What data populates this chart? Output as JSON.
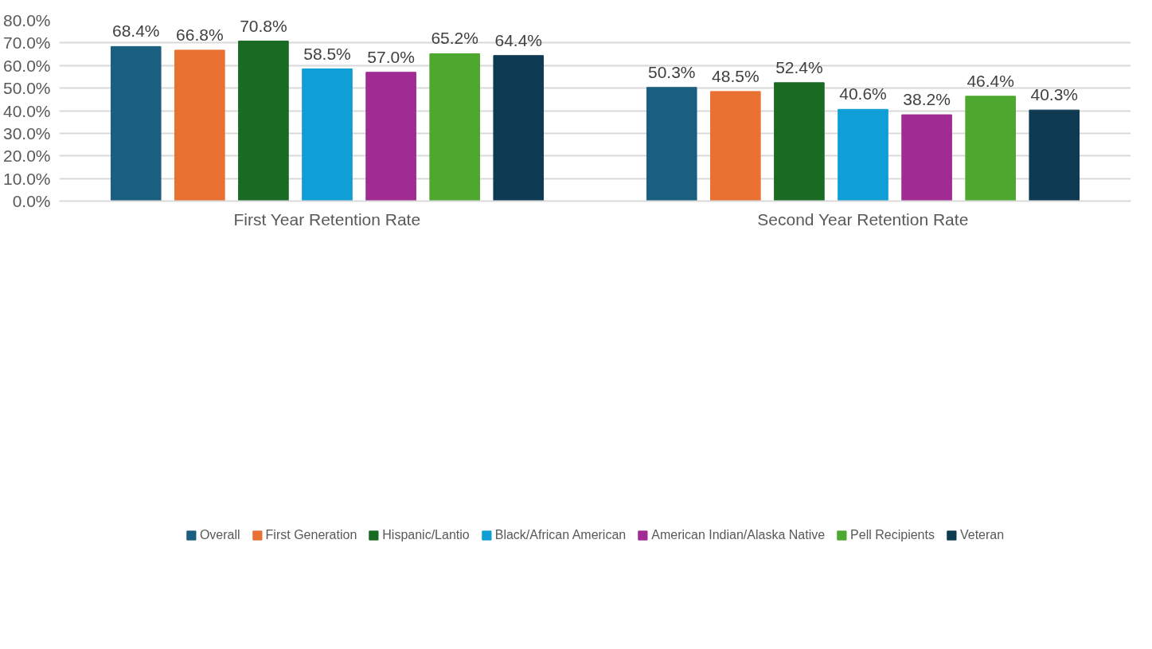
{
  "chart_data": {
    "type": "bar",
    "categories": [
      "First Year Retention Rate",
      "Second Year Retention Rate"
    ],
    "series": [
      {
        "name": "Overall",
        "color": "#1a5e80",
        "values": [
          68.4,
          50.3
        ],
        "value_labels": [
          "68.4%",
          "50.3%"
        ]
      },
      {
        "name": "First Generation",
        "color": "#e97132",
        "values": [
          66.8,
          48.5
        ],
        "value_labels": [
          "66.8%",
          "48.5%"
        ]
      },
      {
        "name": "Hispanic/Lantio",
        "color": "#196b24",
        "values": [
          70.8,
          52.4
        ],
        "value_labels": [
          "70.8%",
          "52.4%"
        ]
      },
      {
        "name": "Black/African American",
        "color": "#0f9ed5",
        "values": [
          58.5,
          40.6
        ],
        "value_labels": [
          "58.5%",
          "40.6%"
        ]
      },
      {
        "name": "American Indian/Alaska Native",
        "color": "#a02b93",
        "values": [
          57.0,
          38.2
        ],
        "value_labels": [
          "57.0%",
          "38.2%"
        ]
      },
      {
        "name": "Pell Recipients",
        "color": "#4ea72e",
        "values": [
          65.2,
          46.4
        ],
        "value_labels": [
          "65.2%",
          "46.4%"
        ]
      },
      {
        "name": "Veteran",
        "color": "#0e3a52",
        "values": [
          64.4,
          40.3
        ],
        "value_labels": [
          "64.4%",
          "40.3%"
        ]
      }
    ],
    "ylim": [
      0,
      80
    ],
    "yticks": [
      {
        "value": 0,
        "label": "0.0%"
      },
      {
        "value": 10,
        "label": "10.0%"
      },
      {
        "value": 20,
        "label": "20.0%"
      },
      {
        "value": 30,
        "label": "30.0%"
      },
      {
        "value": 40,
        "label": "40.0%"
      },
      {
        "value": 50,
        "label": "50.0%"
      },
      {
        "value": 60,
        "label": "60.0%"
      },
      {
        "value": 70,
        "label": "70.0%"
      },
      {
        "value": 80,
        "label": "80.0%"
      }
    ],
    "grid": "y",
    "legend": "bottom"
  }
}
